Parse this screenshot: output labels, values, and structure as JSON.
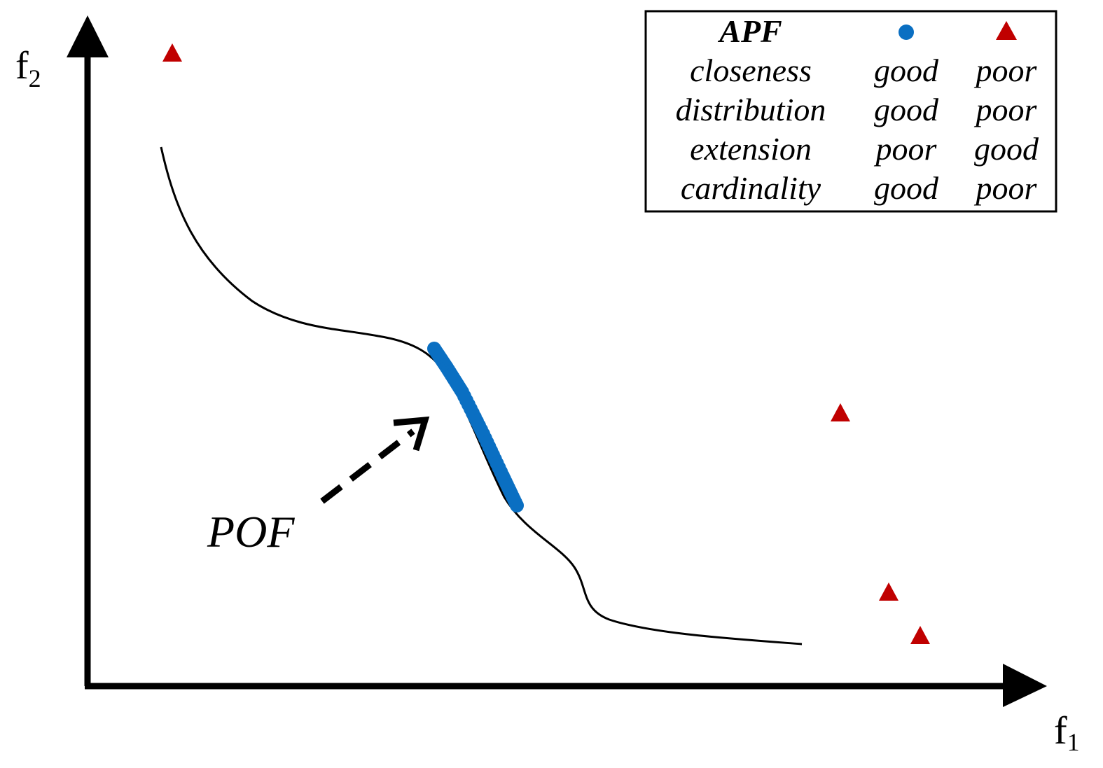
{
  "axes": {
    "x_label_base": "f",
    "x_label_sub": "1",
    "y_label_base": "f",
    "y_label_sub": "2"
  },
  "annotation": {
    "pof_label": "POF"
  },
  "legend": {
    "header": "APF",
    "rows": [
      {
        "metric": "closeness",
        "circle": "good",
        "triangle": "poor"
      },
      {
        "metric": "distribution",
        "circle": "good",
        "triangle": "poor"
      },
      {
        "metric": "extension",
        "circle": "poor",
        "triangle": "good"
      },
      {
        "metric": "cardinality",
        "circle": "good",
        "triangle": "poor"
      }
    ]
  },
  "colors": {
    "circle_set": "#0a6fc2",
    "triangle_set": "#c00000",
    "ink": "#000000"
  }
}
